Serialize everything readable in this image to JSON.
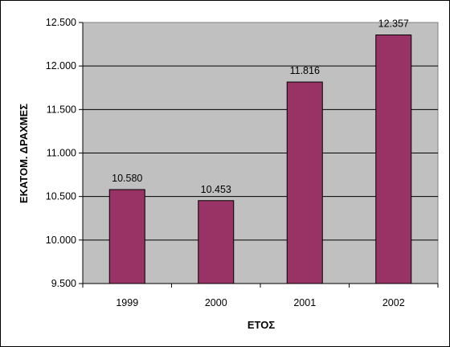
{
  "chart_data": {
    "type": "bar",
    "categories": [
      "1999",
      "2000",
      "2001",
      "2002"
    ],
    "values": [
      10580,
      10453,
      11816,
      12357
    ],
    "value_labels": [
      "10.580",
      "10.453",
      "11.816",
      "12.357"
    ],
    "title": "",
    "xlabel": "ΕΤΟΣ",
    "ylabel": "ΕΚΑΤΟΜ. ΔΡΑΧΜΕΣ",
    "ylim": [
      9500,
      12500
    ],
    "yticks": [
      9500,
      10000,
      10500,
      11000,
      11500,
      12000,
      12500
    ],
    "ytick_labels": [
      "9.500",
      "10.000",
      "10.500",
      "11.000",
      "11.500",
      "12.000",
      "12.500"
    ],
    "grid": true,
    "legend": "none",
    "colors": {
      "bar": "#993366",
      "plot_background": "#c0c0c0",
      "gridline": "#000000"
    }
  }
}
